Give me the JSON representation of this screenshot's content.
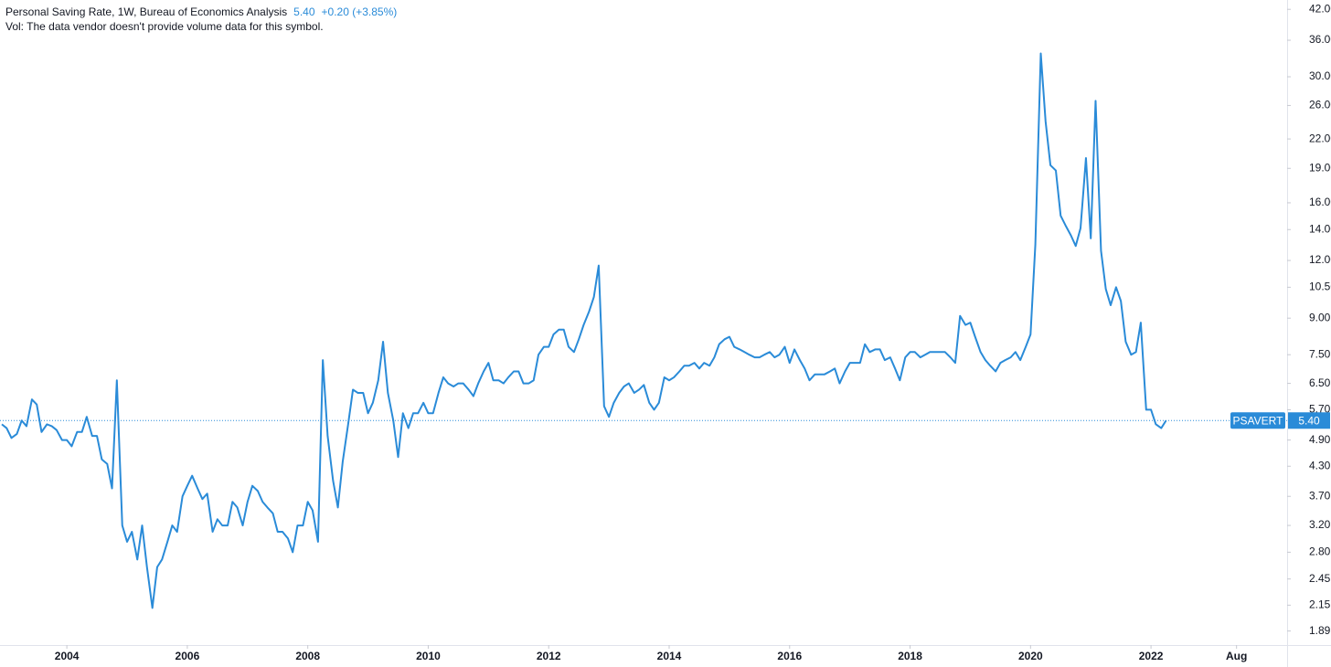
{
  "chart_data": {
    "type": "line",
    "title": "Personal Saving Rate, 1W, Bureau of Economics Analysis",
    "price_label": "5.40",
    "change_label": "+0.20 (+3.85%)",
    "volume_note": "Vol: The data vendor doesn't provide volume data for this symbol.",
    "log_scale": true,
    "grid": false,
    "xlim": [
      2002.89,
      2024.26
    ],
    "ylim": [
      1.77,
      44
    ],
    "xticks": [
      2004,
      2006,
      2008,
      2010,
      2012,
      2014,
      2016,
      2018,
      2020,
      2022,
      {
        "value": 2023.42,
        "label": "Aug"
      }
    ],
    "yticks": [
      {
        "value": 42,
        "label": "42.00"
      },
      {
        "value": 36,
        "label": "36.00"
      },
      {
        "value": 30,
        "label": "30.00"
      },
      {
        "value": 26,
        "label": "26.00"
      },
      {
        "value": 22,
        "label": "22.00"
      },
      {
        "value": 19,
        "label": "19.00"
      },
      {
        "value": 16,
        "label": "16.00"
      },
      {
        "value": 14,
        "label": "14.00"
      },
      {
        "value": 12,
        "label": "12.00"
      },
      {
        "value": 10.5,
        "label": "10.50"
      },
      {
        "value": 9,
        "label": "9.00"
      },
      {
        "value": 7.5,
        "label": "7.50"
      },
      {
        "value": 6.5,
        "label": "6.50"
      },
      {
        "value": 5.7,
        "label": "5.70"
      },
      {
        "value": 4.9,
        "label": "4.90"
      },
      {
        "value": 4.3,
        "label": "4.30"
      },
      {
        "value": 3.7,
        "label": "3.70"
      },
      {
        "value": 3.2,
        "label": "3.20"
      },
      {
        "value": 2.8,
        "label": "2.80"
      },
      {
        "value": 2.45,
        "label": "2.45"
      },
      {
        "value": 2.15,
        "label": "2.15"
      },
      {
        "value": 1.89,
        "label": "1.89"
      }
    ],
    "x": [
      2002.92,
      2003.0,
      2003.08,
      2003.17,
      2003.25,
      2003.33,
      2003.42,
      2003.5,
      2003.58,
      2003.67,
      2003.75,
      2003.83,
      2003.92,
      2004.0,
      2004.08,
      2004.17,
      2004.25,
      2004.33,
      2004.42,
      2004.5,
      2004.58,
      2004.67,
      2004.75,
      2004.83,
      2004.92,
      2005.0,
      2005.08,
      2005.17,
      2005.25,
      2005.33,
      2005.42,
      2005.5,
      2005.58,
      2005.67,
      2005.75,
      2005.83,
      2005.92,
      2006.0,
      2006.08,
      2006.17,
      2006.25,
      2006.33,
      2006.42,
      2006.5,
      2006.58,
      2006.67,
      2006.75,
      2006.83,
      2006.92,
      2007.0,
      2007.08,
      2007.17,
      2007.25,
      2007.33,
      2007.42,
      2007.5,
      2007.58,
      2007.67,
      2007.75,
      2007.83,
      2007.92,
      2008.0,
      2008.08,
      2008.17,
      2008.25,
      2008.33,
      2008.42,
      2008.5,
      2008.58,
      2008.67,
      2008.75,
      2008.83,
      2008.92,
      2009.0,
      2009.08,
      2009.17,
      2009.25,
      2009.33,
      2009.42,
      2009.5,
      2009.58,
      2009.67,
      2009.75,
      2009.83,
      2009.92,
      2010.0,
      2010.08,
      2010.17,
      2010.25,
      2010.33,
      2010.42,
      2010.5,
      2010.58,
      2010.67,
      2010.75,
      2010.83,
      2010.92,
      2011.0,
      2011.08,
      2011.17,
      2011.25,
      2011.33,
      2011.42,
      2011.5,
      2011.58,
      2011.67,
      2011.75,
      2011.83,
      2011.92,
      2012.0,
      2012.08,
      2012.17,
      2012.25,
      2012.33,
      2012.42,
      2012.5,
      2012.58,
      2012.67,
      2012.75,
      2012.83,
      2012.92,
      2013.0,
      2013.08,
      2013.17,
      2013.25,
      2013.33,
      2013.42,
      2013.5,
      2013.58,
      2013.67,
      2013.75,
      2013.83,
      2013.92,
      2014.0,
      2014.08,
      2014.17,
      2014.25,
      2014.33,
      2014.42,
      2014.5,
      2014.58,
      2014.67,
      2014.75,
      2014.83,
      2014.92,
      2015.0,
      2015.08,
      2015.17,
      2015.25,
      2015.33,
      2015.42,
      2015.5,
      2015.58,
      2015.67,
      2015.75,
      2015.83,
      2015.92,
      2016.0,
      2016.08,
      2016.17,
      2016.25,
      2016.33,
      2016.42,
      2016.5,
      2016.58,
      2016.67,
      2016.75,
      2016.83,
      2016.92,
      2017.0,
      2017.08,
      2017.17,
      2017.25,
      2017.33,
      2017.42,
      2017.5,
      2017.58,
      2017.67,
      2017.75,
      2017.83,
      2017.92,
      2018.0,
      2018.08,
      2018.17,
      2018.25,
      2018.33,
      2018.42,
      2018.5,
      2018.58,
      2018.67,
      2018.75,
      2018.83,
      2018.92,
      2019.0,
      2019.08,
      2019.17,
      2019.25,
      2019.33,
      2019.42,
      2019.5,
      2019.58,
      2019.67,
      2019.75,
      2019.83,
      2019.92,
      2020.0,
      2020.08,
      2020.17,
      2020.25,
      2020.33,
      2020.42,
      2020.5,
      2020.58,
      2020.67,
      2020.75,
      2020.83,
      2020.92,
      2021.0,
      2021.08,
      2021.17,
      2021.25,
      2021.33,
      2021.42,
      2021.5,
      2021.58,
      2021.67,
      2021.75,
      2021.83,
      2021.92,
      2022.0,
      2022.08,
      2022.17,
      2022.25
    ],
    "series": [
      {
        "name": "PSAVERT",
        "color": "#2a8bd8",
        "values": [
          5.3,
          5.2,
          4.95,
          5.05,
          5.4,
          5.25,
          6.0,
          5.85,
          5.1,
          5.3,
          5.25,
          5.15,
          4.9,
          4.9,
          4.75,
          5.1,
          5.1,
          5.5,
          5.0,
          5.0,
          4.45,
          4.35,
          3.85,
          6.6,
          3.2,
          2.95,
          3.1,
          2.7,
          3.2,
          2.6,
          2.12,
          2.6,
          2.7,
          2.95,
          3.2,
          3.1,
          3.7,
          3.9,
          4.1,
          3.85,
          3.65,
          3.75,
          3.1,
          3.3,
          3.2,
          3.2,
          3.6,
          3.5,
          3.2,
          3.6,
          3.9,
          3.8,
          3.6,
          3.5,
          3.4,
          3.1,
          3.1,
          3.0,
          2.8,
          3.2,
          3.2,
          3.6,
          3.45,
          2.95,
          7.3,
          5.0,
          4.0,
          3.5,
          4.4,
          5.3,
          6.3,
          6.2,
          6.2,
          5.6,
          5.9,
          6.6,
          8.0,
          6.2,
          5.4,
          4.5,
          5.6,
          5.2,
          5.6,
          5.6,
          5.9,
          5.6,
          5.6,
          6.2,
          6.7,
          6.5,
          6.4,
          6.5,
          6.5,
          6.3,
          6.1,
          6.5,
          6.9,
          7.2,
          6.6,
          6.6,
          6.5,
          6.7,
          6.9,
          6.9,
          6.5,
          6.5,
          6.6,
          7.5,
          7.8,
          7.8,
          8.3,
          8.5,
          8.5,
          7.8,
          7.6,
          8.1,
          8.7,
          9.3,
          10.0,
          11.7,
          5.8,
          5.5,
          5.9,
          6.2,
          6.4,
          6.5,
          6.2,
          6.3,
          6.45,
          5.9,
          5.7,
          5.9,
          6.7,
          6.6,
          6.7,
          6.9,
          7.1,
          7.1,
          7.2,
          7.0,
          7.2,
          7.1,
          7.4,
          7.9,
          8.1,
          8.2,
          7.8,
          7.7,
          7.6,
          7.5,
          7.4,
          7.4,
          7.5,
          7.6,
          7.4,
          7.5,
          7.8,
          7.2,
          7.7,
          7.3,
          7.0,
          6.6,
          6.8,
          6.8,
          6.8,
          6.9,
          7.0,
          6.5,
          6.9,
          7.2,
          7.2,
          7.2,
          7.9,
          7.6,
          7.7,
          7.7,
          7.3,
          7.4,
          7.0,
          6.6,
          7.4,
          7.6,
          7.6,
          7.4,
          7.5,
          7.6,
          7.6,
          7.6,
          7.6,
          7.4,
          7.2,
          9.1,
          8.7,
          8.8,
          8.2,
          7.6,
          7.3,
          7.1,
          6.9,
          7.2,
          7.3,
          7.4,
          7.6,
          7.3,
          7.8,
          8.3,
          13.0,
          33.7,
          24.0,
          19.3,
          18.8,
          15.0,
          14.3,
          13.6,
          12.9,
          14.1,
          20.0,
          13.4,
          26.6,
          12.6,
          10.4,
          9.6,
          10.5,
          9.8,
          8.0,
          7.5,
          7.6,
          8.8,
          5.7,
          5.7,
          5.3,
          5.2,
          5.4
        ]
      }
    ]
  }
}
